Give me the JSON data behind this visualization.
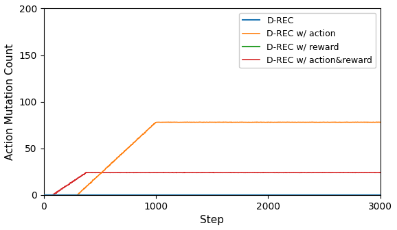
{
  "title": "",
  "xlabel": "Step",
  "ylabel": "Action Mutation Count",
  "xlim": [
    0,
    3000
  ],
  "ylim": [
    0,
    200
  ],
  "yticks": [
    0,
    50,
    100,
    150,
    200
  ],
  "xticks": [
    0,
    1000,
    2000,
    3000
  ],
  "legend_labels": [
    "D-REC",
    "D-REC w/ action",
    "D-REC w/ reward",
    "D-REC w/ action&reward"
  ],
  "drec_color": "#1f77b4",
  "action_color": "#ff7f0e",
  "reward_color": "#2ca02c",
  "action_reward_color": "#d62728",
  "action_plateau": 78,
  "action_reward_plateau": 24,
  "action_start_step": 300,
  "action_plateau_step": 1000,
  "action_reward_start_step": 80,
  "action_reward_plateau_step": 380,
  "total_steps": 3000,
  "figsize": [
    5.78,
    3.36
  ],
  "dpi": 100
}
